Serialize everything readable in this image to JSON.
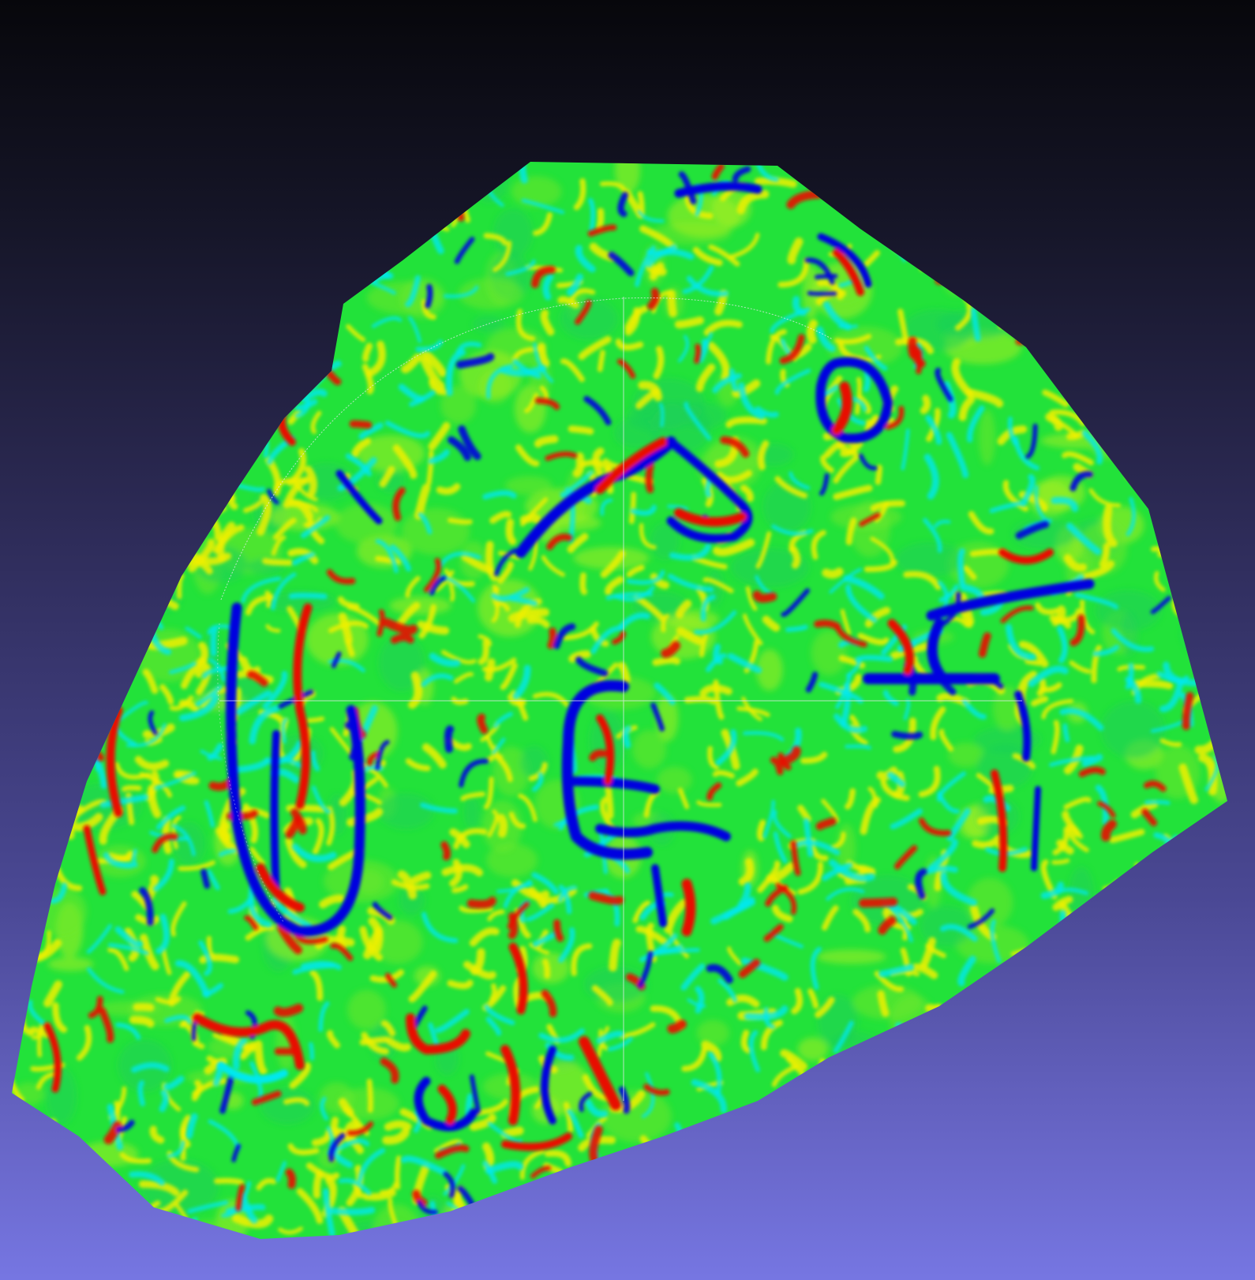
{
  "viewport": {
    "background_top": "#07070b",
    "background_bottom": "#7676e2"
  },
  "mesh": {
    "colormap": [
      "#0000e0",
      "#00e8f0",
      "#00e040",
      "#f0f000",
      "#e81000"
    ],
    "base_color": "#22e23a"
  },
  "trackball": {
    "color": "#e8e8f0"
  }
}
